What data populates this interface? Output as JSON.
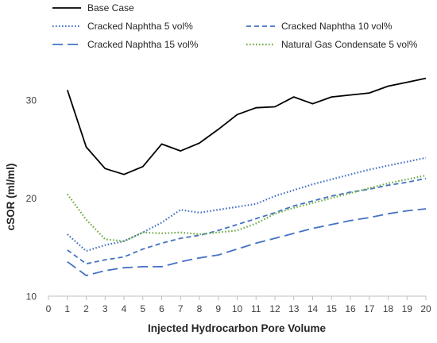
{
  "chart_data": {
    "type": "line",
    "title": "",
    "xlabel": "Injected Hydrocarbon Pore Volume",
    "ylabel": "cSOR (ml/ml)",
    "xlim": [
      0,
      20
    ],
    "ylim": [
      10,
      35
    ],
    "xticks": [
      0,
      1,
      2,
      3,
      4,
      5,
      6,
      7,
      8,
      9,
      10,
      11,
      12,
      13,
      14,
      15,
      16,
      17,
      18,
      19,
      20
    ],
    "yticks": [
      10,
      20,
      30
    ],
    "grid": false,
    "legend_position": "top",
    "x": [
      1,
      2,
      3,
      4,
      5,
      6,
      7,
      8,
      9,
      10,
      11,
      12,
      13,
      14,
      15,
      16,
      17,
      18,
      19,
      20
    ],
    "series": [
      {
        "name": "Base Case",
        "color": "#000000",
        "dash": "solid",
        "values": [
          31.0,
          25.2,
          23.0,
          22.4,
          23.2,
          25.5,
          24.8,
          25.6,
          27.0,
          28.5,
          29.2,
          29.3,
          30.3,
          29.6,
          30.3,
          30.5,
          30.7,
          31.4,
          31.8,
          32.2
        ]
      },
      {
        "name": "Cracked Naphtha 5 vol%",
        "color": "#4472C4",
        "dash": "dotted",
        "values": [
          16.3,
          14.6,
          15.2,
          15.6,
          16.5,
          17.5,
          18.8,
          18.5,
          18.8,
          19.1,
          19.4,
          20.2,
          20.8,
          21.4,
          21.9,
          22.4,
          22.9,
          23.3,
          23.7,
          24.1
        ]
      },
      {
        "name": "Cracked Naphtha 10 vol%",
        "color": "#4472C4",
        "dash": "dashed",
        "values": [
          14.7,
          13.3,
          13.7,
          14.0,
          14.8,
          15.4,
          15.9,
          16.2,
          16.7,
          17.3,
          17.9,
          18.5,
          19.2,
          19.7,
          20.2,
          20.6,
          20.9,
          21.3,
          21.6,
          22.0
        ]
      },
      {
        "name": "Cracked Naphtha 15 vol%",
        "color": "#4472C4",
        "dash": "longdash",
        "values": [
          13.5,
          12.1,
          12.6,
          12.9,
          13.0,
          13.0,
          13.5,
          13.9,
          14.2,
          14.8,
          15.4,
          15.9,
          16.4,
          16.9,
          17.3,
          17.7,
          18.0,
          18.4,
          18.7,
          18.9
        ]
      },
      {
        "name": "Natural Gas Condensate 5 vol%",
        "color": "#70AD47",
        "dash": "dotted",
        "values": [
          20.4,
          17.8,
          15.8,
          15.6,
          16.5,
          16.4,
          16.5,
          16.3,
          16.5,
          16.7,
          17.4,
          18.4,
          19.0,
          19.5,
          20.0,
          20.5,
          21.0,
          21.5,
          21.9,
          22.3
        ]
      }
    ]
  }
}
